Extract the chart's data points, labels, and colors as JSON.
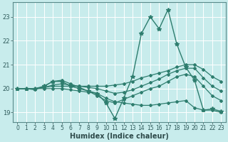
{
  "xlabel": "Humidex (Indice chaleur)",
  "background_color": "#c8ecec",
  "grid_color": "#b0d8d8",
  "line_color": "#2e7d6e",
  "xlim": [
    -0.5,
    23.5
  ],
  "ylim": [
    18.6,
    23.6
  ],
  "xticks": [
    0,
    1,
    2,
    3,
    4,
    5,
    6,
    7,
    8,
    9,
    10,
    11,
    12,
    13,
    14,
    15,
    16,
    17,
    18,
    19,
    20,
    21,
    22,
    23
  ],
  "yticks": [
    19,
    20,
    21,
    22,
    23
  ],
  "series": [
    {
      "x": [
        0,
        1,
        2,
        3,
        4,
        5,
        6,
        7,
        8,
        9,
        10,
        11,
        12,
        13,
        14,
        15,
        16,
        17,
        18,
        19,
        20,
        21,
        22,
        23
      ],
      "y": [
        20.0,
        20.0,
        20.0,
        20.1,
        20.3,
        20.3,
        20.1,
        20.0,
        19.9,
        19.8,
        19.4,
        18.75,
        19.6,
        20.5,
        22.3,
        23.0,
        22.5,
        23.3,
        21.85,
        20.9,
        20.35,
        19.1,
        19.15,
        19.05
      ],
      "marker": "*",
      "markersize": 4,
      "linewidth": 1.0
    },
    {
      "x": [
        0,
        1,
        2,
        3,
        4,
        5,
        6,
        7,
        8,
        9,
        10,
        11,
        12,
        13,
        14,
        15,
        16,
        17,
        18,
        19,
        20,
        21,
        22,
        23
      ],
      "y": [
        20.0,
        20.0,
        20.0,
        20.05,
        20.1,
        20.1,
        20.1,
        20.1,
        20.1,
        20.1,
        20.1,
        20.15,
        20.2,
        20.3,
        20.45,
        20.55,
        20.65,
        20.75,
        20.9,
        21.0,
        21.0,
        20.8,
        20.5,
        20.3
      ],
      "marker": "D",
      "markersize": 2,
      "linewidth": 0.9
    },
    {
      "x": [
        0,
        1,
        2,
        3,
        4,
        5,
        6,
        7,
        8,
        9,
        10,
        11,
        12,
        13,
        14,
        15,
        16,
        17,
        18,
        19,
        20,
        21,
        22,
        23
      ],
      "y": [
        20.0,
        20.0,
        19.95,
        20.1,
        20.3,
        20.35,
        20.2,
        20.05,
        19.9,
        19.7,
        19.5,
        19.4,
        19.55,
        19.7,
        19.85,
        20.0,
        20.1,
        20.3,
        20.5,
        20.6,
        20.5,
        20.1,
        19.7,
        19.5
      ],
      "marker": "D",
      "markersize": 2,
      "linewidth": 0.9
    },
    {
      "x": [
        0,
        1,
        2,
        3,
        4,
        5,
        6,
        7,
        8,
        9,
        10,
        11,
        12,
        13,
        14,
        15,
        16,
        17,
        18,
        19,
        20,
        21,
        22,
        23
      ],
      "y": [
        20.0,
        20.0,
        20.0,
        20.0,
        20.0,
        20.0,
        19.95,
        19.9,
        19.85,
        19.8,
        19.6,
        19.45,
        19.4,
        19.35,
        19.3,
        19.3,
        19.35,
        19.4,
        19.45,
        19.5,
        19.2,
        19.1,
        19.1,
        19.0
      ],
      "marker": "D",
      "markersize": 2,
      "linewidth": 0.9
    },
    {
      "x": [
        0,
        1,
        2,
        3,
        4,
        5,
        6,
        7,
        8,
        9,
        10,
        11,
        12,
        13,
        14,
        15,
        16,
        17,
        18,
        19,
        20,
        21,
        22,
        23
      ],
      "y": [
        20.0,
        20.0,
        20.0,
        20.05,
        20.15,
        20.2,
        20.15,
        20.1,
        20.05,
        20.0,
        19.9,
        19.8,
        19.85,
        19.95,
        20.1,
        20.25,
        20.4,
        20.6,
        20.75,
        20.85,
        20.85,
        20.45,
        20.1,
        19.9
      ],
      "marker": "D",
      "markersize": 2,
      "linewidth": 0.9
    }
  ]
}
